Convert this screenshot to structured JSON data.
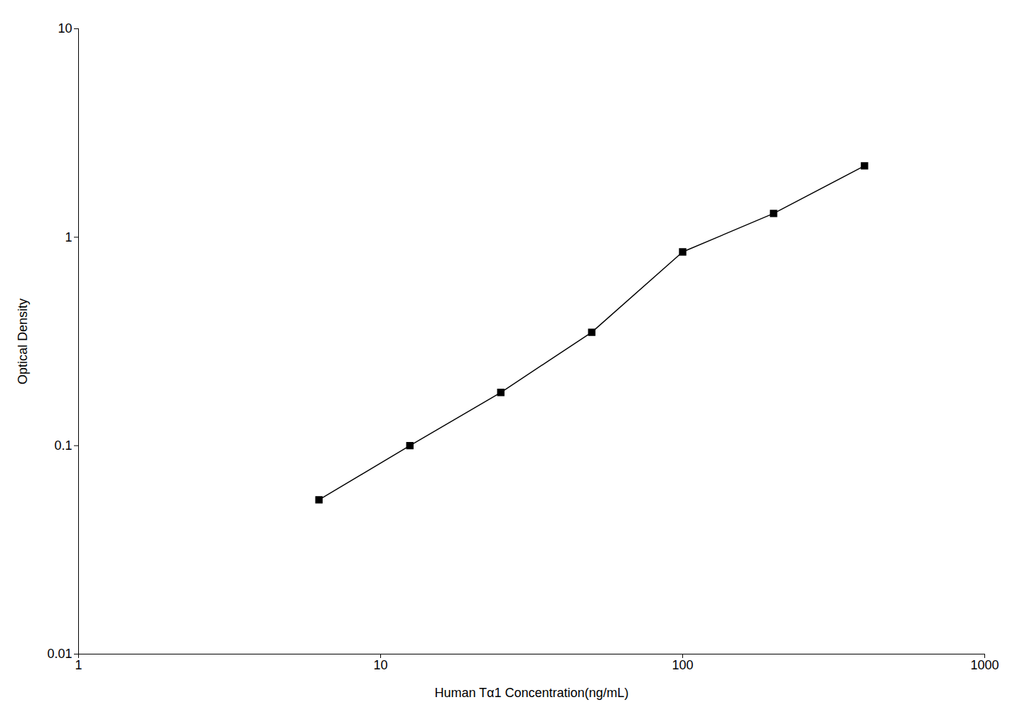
{
  "chart_data": {
    "type": "line",
    "xlabel": "Human Tα1 Concentration(ng/mL)",
    "ylabel": "Optical Density",
    "x": [
      6.25,
      12.5,
      25,
      50,
      100,
      200,
      400
    ],
    "values": [
      0.055,
      0.1,
      0.18,
      0.35,
      0.85,
      1.3,
      2.2
    ],
    "color": "#000000",
    "marker": "square",
    "log": true,
    "xlim": [
      1,
      1000
    ],
    "ylim": [
      0.01,
      10
    ],
    "xticks": [
      1,
      10,
      100,
      1000
    ],
    "yticks": [
      0.01,
      0.1,
      1,
      10
    ],
    "grid": false
  }
}
